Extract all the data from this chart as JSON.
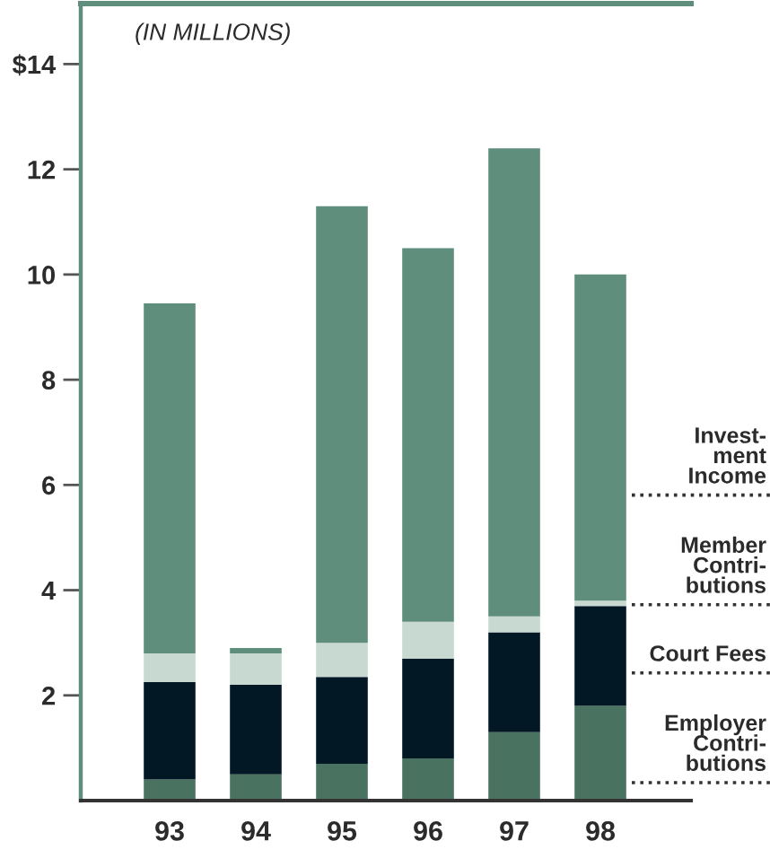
{
  "chart_data": {
    "type": "bar",
    "stacked": true,
    "ylabel": "(IN MILLIONS)",
    "categories": [
      "93",
      "94",
      "95",
      "96",
      "97",
      "98"
    ],
    "series": [
      {
        "name": "Employer\nContri-\nbutions",
        "color": "#4a7261",
        "values": [
          0.4,
          0.5,
          0.7,
          0.8,
          1.3,
          1.8
        ]
      },
      {
        "name": "Court Fees",
        "color": "#021824",
        "values": [
          1.85,
          1.7,
          1.65,
          1.9,
          1.9,
          1.9
        ]
      },
      {
        "name": "Member\nContri-\nbutions",
        "color": "#c7d9d1",
        "values": [
          0.55,
          0.6,
          0.65,
          0.7,
          0.3,
          0.1
        ]
      },
      {
        "name": "Invest-\nment\nIncome",
        "color": "#5f8e7d",
        "values": [
          6.65,
          0.1,
          8.3,
          7.1,
          8.9,
          6.2
        ]
      }
    ],
    "ylim": [
      0,
      15.15
    ],
    "yticks": [
      2,
      4,
      6,
      8,
      10,
      12,
      {
        "value": 14,
        "label": "$14"
      }
    ],
    "legend": "right"
  }
}
